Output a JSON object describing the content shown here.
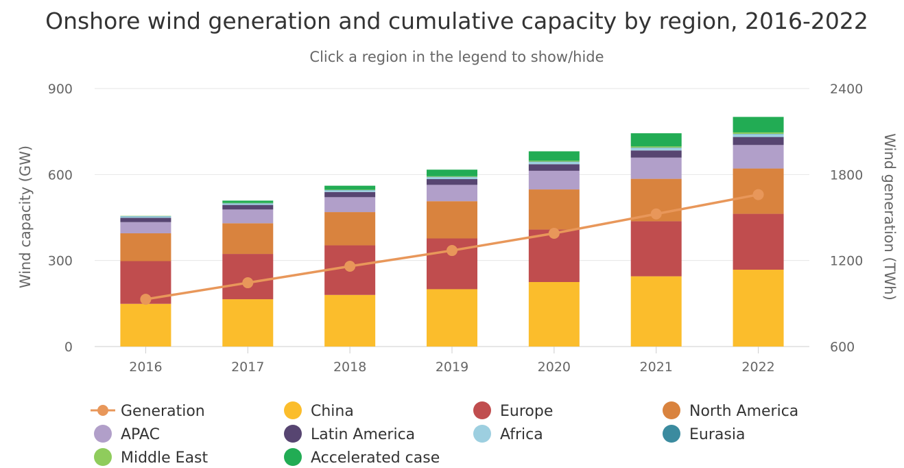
{
  "chart_data": {
    "type": "bar",
    "stacked": true,
    "title": "Onshore wind generation and cumulative capacity by region, 2016-2022",
    "subtitle": "Click a region in the legend to show/hide",
    "categories": [
      "2016",
      "2017",
      "2018",
      "2019",
      "2020",
      "2021",
      "2022"
    ],
    "y_left": {
      "label": "Wind capacity (GW)",
      "min": 0,
      "max": 900,
      "ticks": [
        0,
        300,
        600,
        900
      ]
    },
    "y_right": {
      "label": "Wind generation (TWh)",
      "min": 600,
      "max": 2400,
      "ticks": [
        600,
        1200,
        1800,
        2400
      ]
    },
    "grid": true,
    "legend_position": "bottom",
    "series": [
      {
        "name": "China",
        "color": "#fbbd2c",
        "values": [
          149,
          165,
          180,
          200,
          225,
          245,
          268
        ]
      },
      {
        "name": "Europe",
        "color": "#c04d4e",
        "values": [
          149,
          158,
          173,
          177,
          183,
          192,
          195
        ]
      },
      {
        "name": "North America",
        "color": "#d9833e",
        "values": [
          97,
          107,
          116,
          130,
          140,
          148,
          158
        ]
      },
      {
        "name": "APAC",
        "color": "#b19fc9",
        "values": [
          39,
          48,
          52,
          57,
          65,
          74,
          82
        ]
      },
      {
        "name": "Latin America",
        "color": "#574571",
        "values": [
          15,
          16,
          18,
          20,
          23,
          25,
          28
        ]
      },
      {
        "name": "Africa",
        "color": "#9dcfe0",
        "values": [
          5,
          5,
          6,
          7,
          8,
          9,
          10
        ]
      },
      {
        "name": "Eurasia",
        "color": "#3b8b9f",
        "values": [
          1,
          1,
          1,
          1,
          1,
          1,
          1
        ]
      },
      {
        "name": "Middle East",
        "color": "#8fcc5c",
        "values": [
          1,
          1,
          1,
          2,
          3,
          4,
          5
        ]
      },
      {
        "name": "Accelerated case",
        "color": "#22ac54",
        "values": [
          0,
          8,
          14,
          23,
          33,
          46,
          54
        ]
      }
    ],
    "line_series": {
      "name": "Generation",
      "color": "#e8975a",
      "axis": "right",
      "values": [
        930,
        1045,
        1160,
        1270,
        1390,
        1525,
        1660
      ]
    }
  }
}
